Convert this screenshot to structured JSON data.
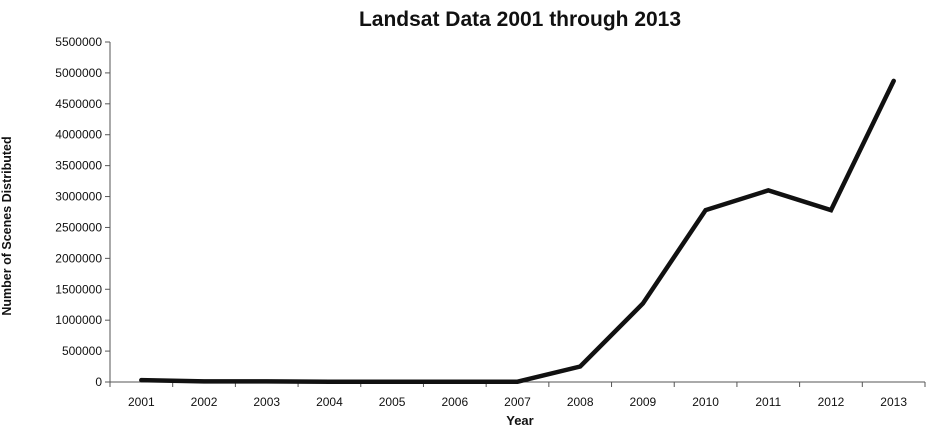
{
  "chart_data": {
    "type": "line",
    "title": "Landsat Data 2001 through 2013",
    "xlabel": "Year",
    "ylabel": "Number of Scenes Distributed",
    "categories": [
      "2001",
      "2002",
      "2003",
      "2004",
      "2005",
      "2006",
      "2007",
      "2008",
      "2009",
      "2010",
      "2011",
      "2012",
      "2013"
    ],
    "series": [
      {
        "values": [
          30000,
          10000,
          10000,
          5000,
          5000,
          5000,
          5000,
          250000,
          1270000,
          2780000,
          3100000,
          2780000,
          4870000
        ]
      }
    ],
    "ylim": [
      0,
      5500000
    ],
    "yticks": [
      "0",
      "500000",
      "1000000",
      "1500000",
      "2000000",
      "2500000",
      "3000000",
      "3500000",
      "4000000",
      "4500000",
      "5000000",
      "5500000"
    ],
    "grid": false,
    "legend": "none",
    "line_color": "#111111"
  }
}
